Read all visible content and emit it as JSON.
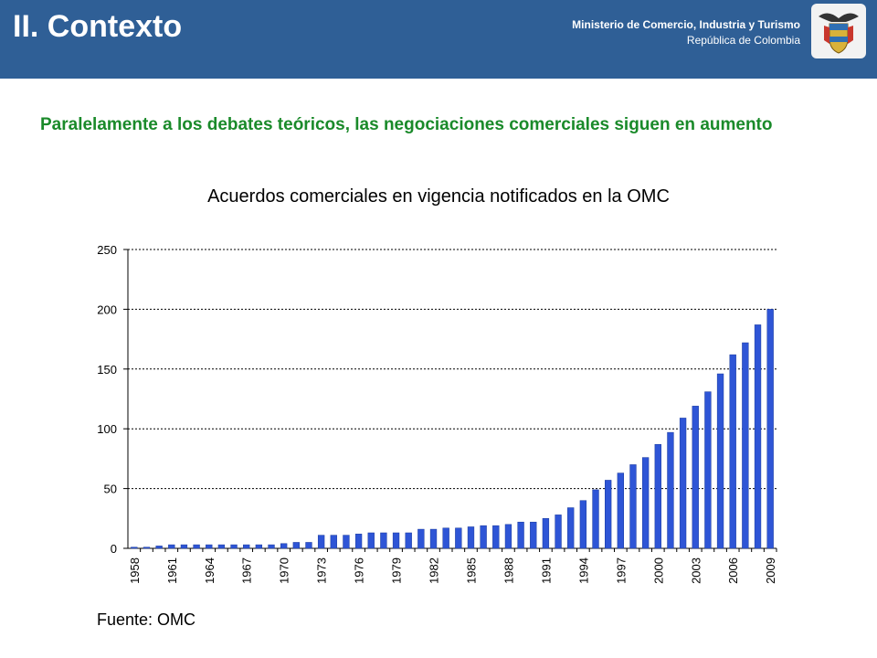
{
  "header": {
    "title": "II. Contexto",
    "ministry_line1": "Ministerio de Comercio, Industria y Turismo",
    "ministry_line2": "República de Colombia",
    "crest_icon": "colombia-coat-of-arms-icon",
    "background_color": "#2f5f96"
  },
  "subtitle": "Paralelamente a los debates teóricos, las negociaciones comerciales siguen en aumento",
  "source": "Fuente: OMC",
  "chart_data": {
    "type": "bar",
    "title": "Acuerdos comerciales en vigencia notificados en la OMC",
    "xlabel": "",
    "ylabel": "",
    "ylim": [
      0,
      250
    ],
    "yticks": [
      0,
      50,
      100,
      150,
      200,
      250
    ],
    "grid": true,
    "bar_color": "#2e55d6",
    "tick_years": [
      "1958",
      "1961",
      "1964",
      "1967",
      "1970",
      "1973",
      "1976",
      "1979",
      "1982",
      "1985",
      "1988",
      "1991",
      "1994",
      "1997",
      "2000",
      "2003",
      "2006",
      "2009"
    ],
    "categories": [
      "1958",
      "1959",
      "1960",
      "1961",
      "1962",
      "1963",
      "1964",
      "1965",
      "1966",
      "1967",
      "1968",
      "1969",
      "1970",
      "1971",
      "1972",
      "1973",
      "1974",
      "1975",
      "1976",
      "1977",
      "1978",
      "1979",
      "1980",
      "1981",
      "1982",
      "1983",
      "1984",
      "1985",
      "1986",
      "1987",
      "1988",
      "1989",
      "1990",
      "1991",
      "1992",
      "1993",
      "1994",
      "1995",
      "1996",
      "1997",
      "1998",
      "1999",
      "2000",
      "2001",
      "2002",
      "2003",
      "2004",
      "2005",
      "2006",
      "2007",
      "2008",
      "2009"
    ],
    "values": [
      1,
      1,
      2,
      3,
      3,
      3,
      3,
      3,
      3,
      3,
      3,
      3,
      4,
      5,
      5,
      11,
      11,
      11,
      12,
      13,
      13,
      13,
      13,
      16,
      16,
      17,
      17,
      18,
      19,
      19,
      20,
      22,
      22,
      25,
      28,
      34,
      40,
      49,
      57,
      63,
      70,
      76,
      87,
      97,
      109,
      119,
      131,
      146,
      162,
      172,
      187,
      200
    ]
  }
}
